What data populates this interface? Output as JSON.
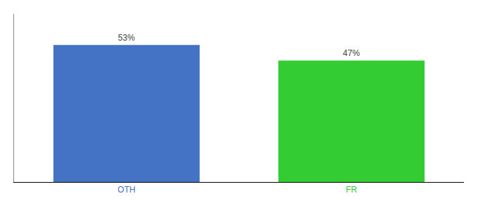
{
  "chart_data": {
    "type": "bar",
    "categories": [
      "OTH",
      "FR"
    ],
    "values": [
      53,
      47
    ],
    "value_labels": [
      "53%",
      "47%"
    ],
    "colors": [
      "#4472C4",
      "#33CC33"
    ],
    "ylim": [
      0,
      65
    ],
    "data_labels": true,
    "tick_labels": "x",
    "grid": false
  }
}
